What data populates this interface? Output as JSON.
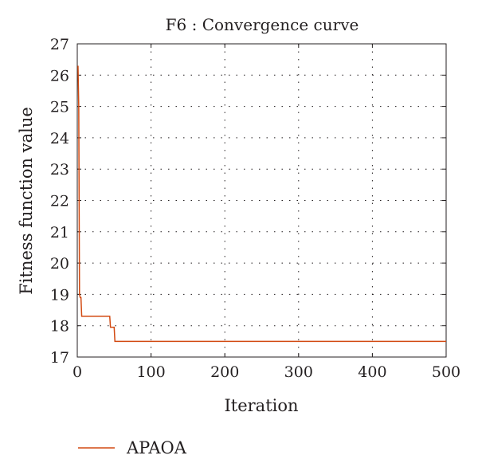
{
  "chart_data": {
    "type": "line",
    "title": "F6 : Convergence curve",
    "xlabel": "Iteration",
    "ylabel": "Fitness function value",
    "xlim": [
      0,
      500
    ],
    "ylim": [
      17,
      27
    ],
    "xticks": [
      0,
      100,
      200,
      300,
      400,
      500
    ],
    "yticks": [
      17,
      18,
      19,
      20,
      21,
      22,
      23,
      24,
      25,
      26,
      27
    ],
    "grid": true,
    "legend_position": "bottom-left",
    "series": [
      {
        "name": "APAOA",
        "color": "#d24a12",
        "x": [
          1,
          2,
          3,
          4,
          5,
          6,
          7,
          44,
          45,
          50,
          51,
          500
        ],
        "y": [
          26.3,
          25.0,
          19.0,
          18.9,
          18.9,
          18.3,
          18.3,
          18.3,
          17.95,
          17.95,
          17.5,
          17.5
        ]
      }
    ]
  }
}
